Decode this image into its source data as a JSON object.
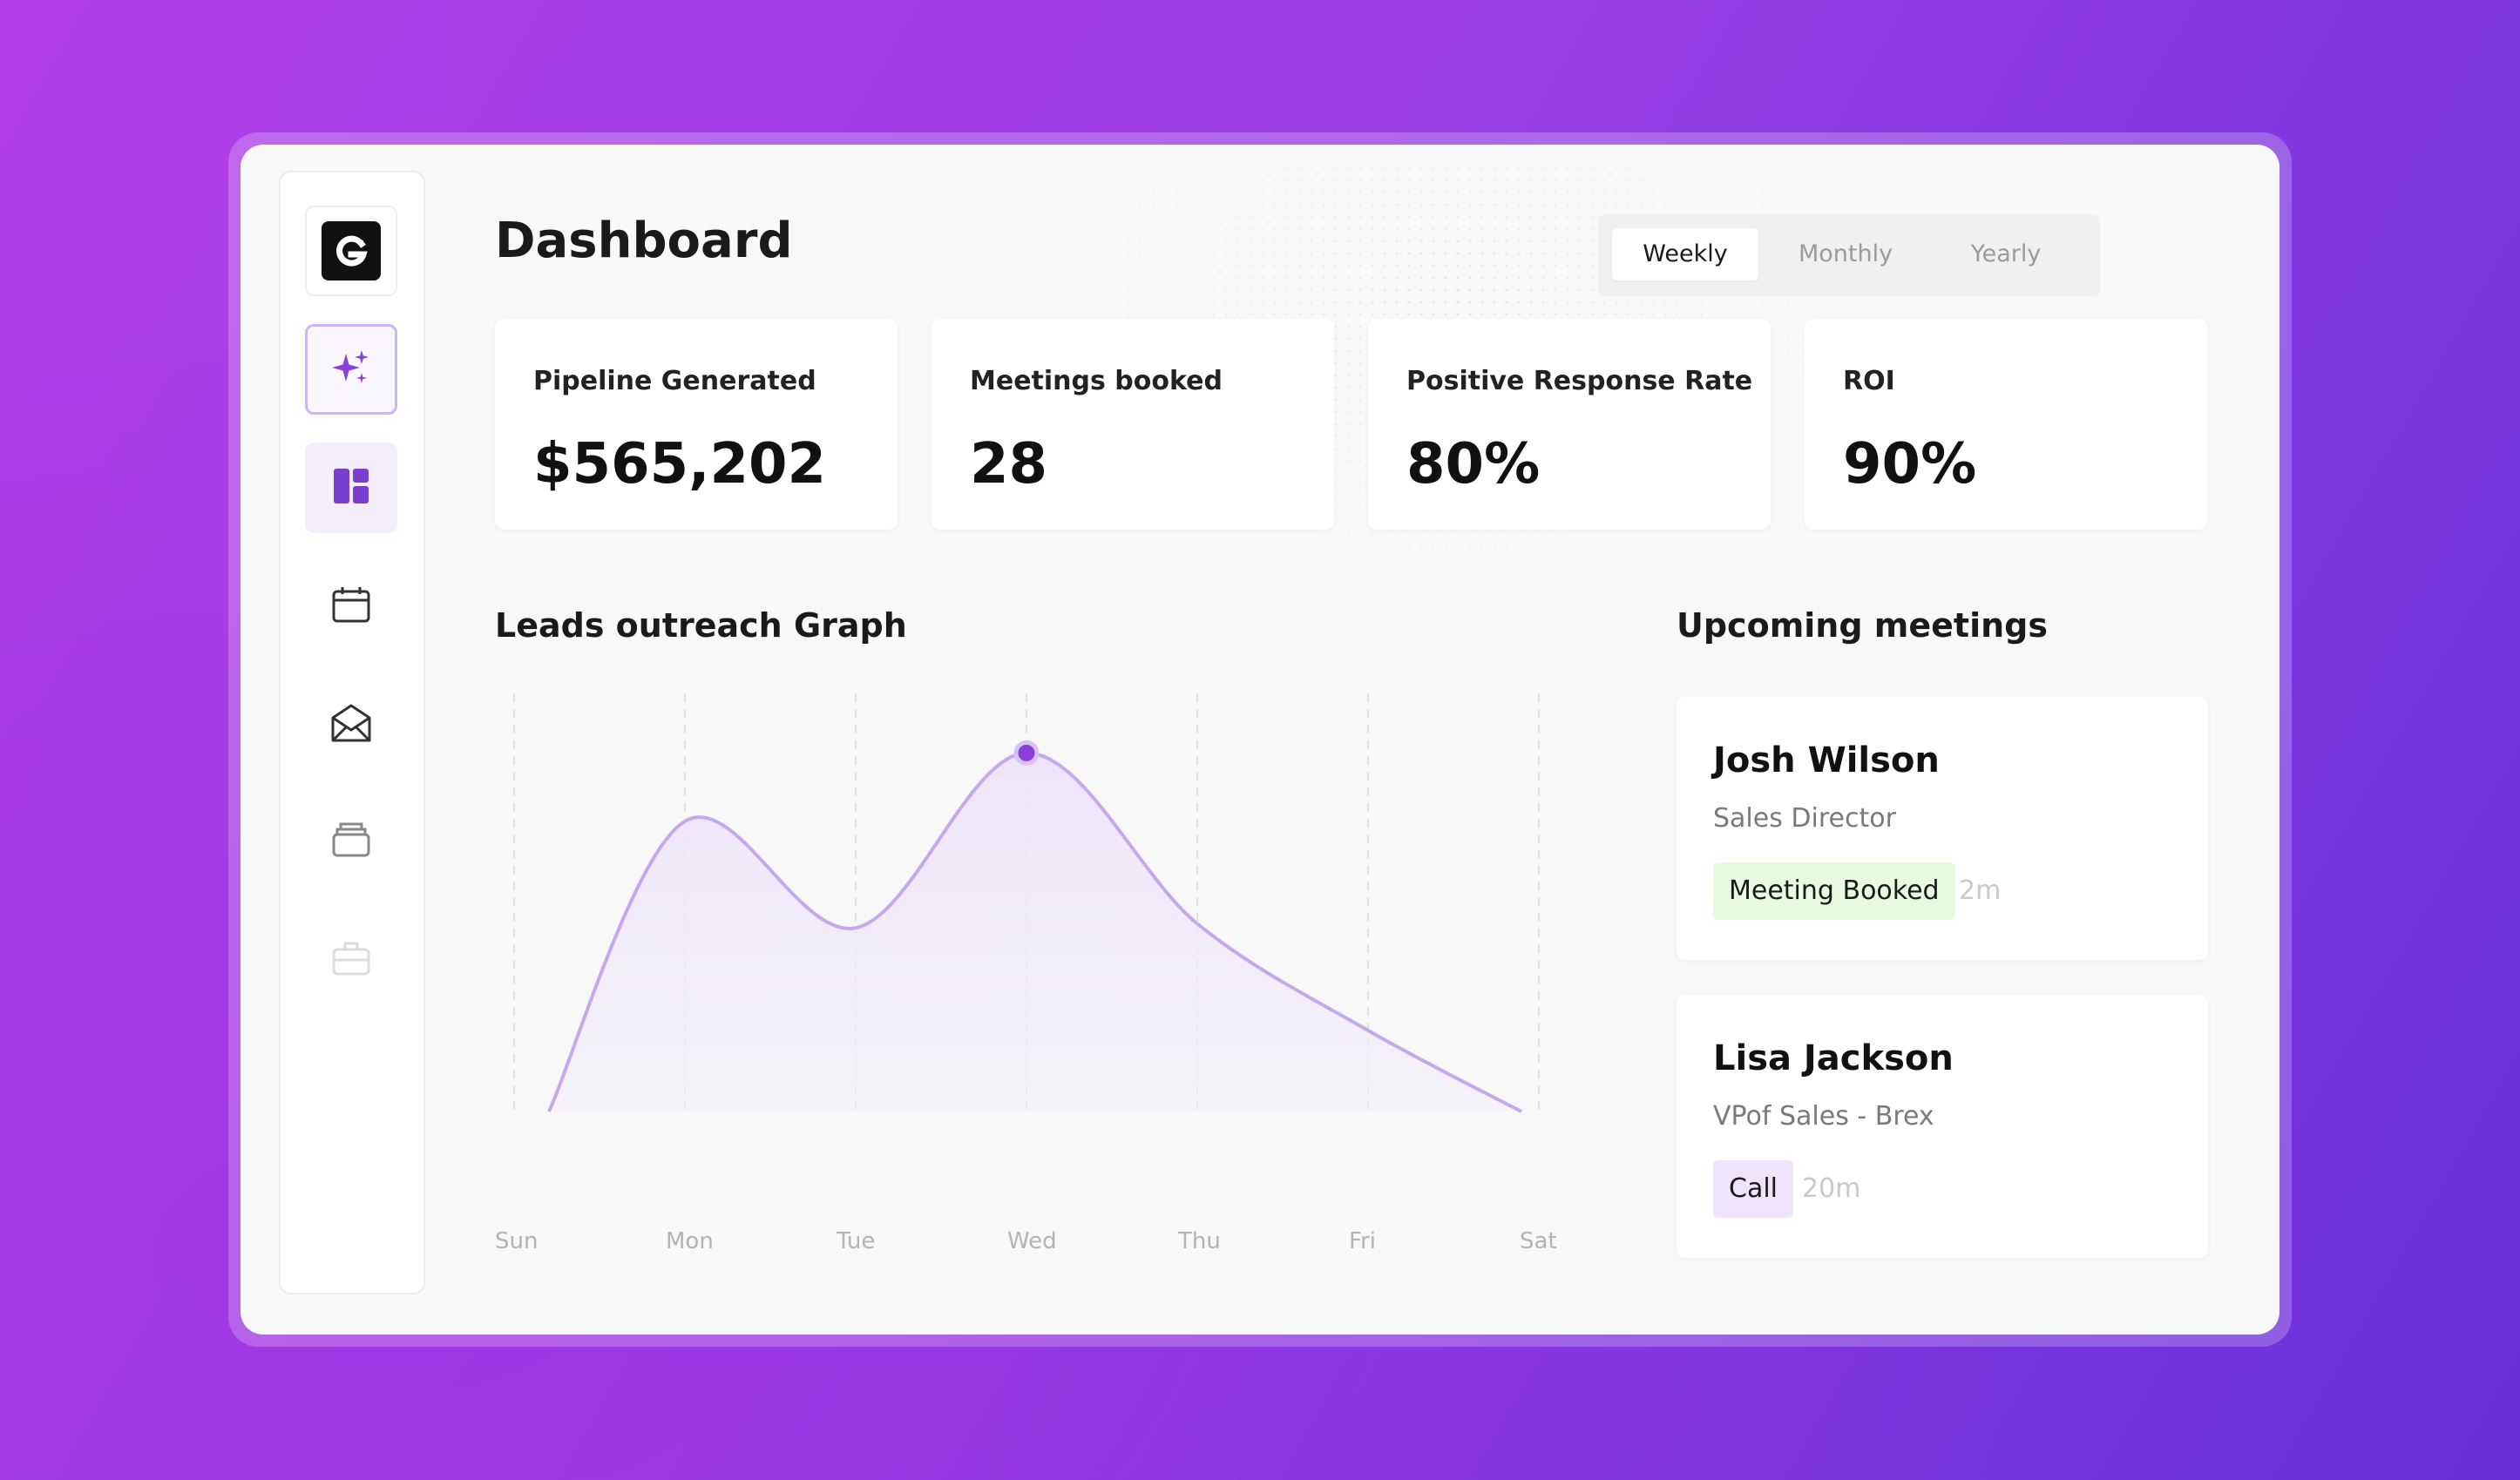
{
  "header": {
    "title": "Dashboard"
  },
  "period_tabs": [
    "Weekly",
    "Monthly",
    "Yearly"
  ],
  "active_period": "Weekly",
  "stats": [
    {
      "label": "Pipeline Generated",
      "value": "$565,202"
    },
    {
      "label": "Meetings booked",
      "value": "28"
    },
    {
      "label": "Positive Response Rate",
      "value": "80%"
    },
    {
      "label": "ROI",
      "value": "90%"
    }
  ],
  "graph": {
    "title": "Leads outreach Graph",
    "days": [
      "Sun",
      "Mon",
      "Tue",
      "Wed",
      "Thu",
      "Fri",
      "Sat"
    ]
  },
  "chart_data": {
    "type": "area",
    "categories": [
      "Sun",
      "Mon",
      "Tue",
      "Wed",
      "Thu",
      "Fri",
      "Sat"
    ],
    "values": [
      0,
      68,
      43,
      84,
      44,
      19,
      0
    ],
    "highlighted_point": "Wed",
    "ylim": [
      0,
      100
    ],
    "grid": "vertical-dashed",
    "color": "#c6a8ee"
  },
  "meetings": {
    "title": "Upcoming meetings",
    "items": [
      {
        "name": "Josh Wilson",
        "role": "Sales Director",
        "status": "Meeting Booked",
        "ago": "2m"
      },
      {
        "name": "Lisa Jackson",
        "role": "VPof Sales - Brex",
        "status": "Call",
        "ago": "20m"
      }
    ]
  },
  "sidebar": {
    "icons": [
      "logo-icon",
      "sparkles-icon",
      "dashboard-icon",
      "calendar-icon",
      "mail-open-icon",
      "inbox-stack-icon",
      "briefcase-icon"
    ]
  },
  "colors": {
    "accent": "#8b3fd9",
    "background": "#a13ee6",
    "badge_green": "#e6fbe0",
    "badge_purple": "#efe4fb"
  }
}
